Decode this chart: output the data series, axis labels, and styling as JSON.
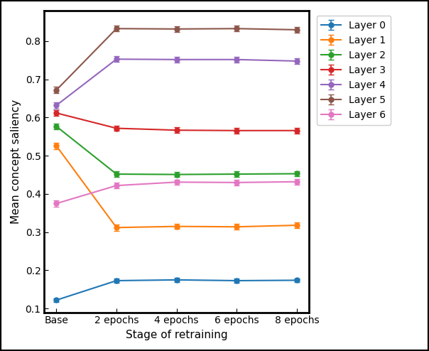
{
  "x_labels": [
    "Base",
    "2 epochs",
    "4 epochs",
    "6 epochs",
    "8 epochs"
  ],
  "x_values": [
    0,
    1,
    2,
    3,
    4
  ],
  "layers": [
    {
      "name": "Layer 0",
      "color": "#1f77b4",
      "values": [
        0.122,
        0.173,
        0.175,
        0.173,
        0.174
      ],
      "errors": [
        0.005,
        0.005,
        0.005,
        0.005,
        0.005
      ]
    },
    {
      "name": "Layer 1",
      "color": "#ff7f0e",
      "values": [
        0.526,
        0.312,
        0.315,
        0.314,
        0.318
      ],
      "errors": [
        0.008,
        0.008,
        0.007,
        0.007,
        0.007
      ]
    },
    {
      "name": "Layer 2",
      "color": "#2ca02c",
      "values": [
        0.577,
        0.452,
        0.451,
        0.452,
        0.453
      ],
      "errors": [
        0.008,
        0.008,
        0.007,
        0.007,
        0.007
      ]
    },
    {
      "name": "Layer 3",
      "color": "#d62728",
      "values": [
        0.612,
        0.572,
        0.567,
        0.566,
        0.566
      ],
      "errors": [
        0.008,
        0.007,
        0.007,
        0.007,
        0.007
      ]
    },
    {
      "name": "Layer 4",
      "color": "#9467bd",
      "values": [
        0.632,
        0.753,
        0.752,
        0.752,
        0.748
      ],
      "errors": [
        0.008,
        0.007,
        0.007,
        0.007,
        0.007
      ]
    },
    {
      "name": "Layer 5",
      "color": "#8c564b",
      "values": [
        0.672,
        0.833,
        0.832,
        0.833,
        0.83
      ],
      "errors": [
        0.008,
        0.007,
        0.007,
        0.007,
        0.007
      ]
    },
    {
      "name": "Layer 6",
      "color": "#e377c2",
      "values": [
        0.375,
        0.422,
        0.431,
        0.43,
        0.432
      ],
      "errors": [
        0.008,
        0.007,
        0.007,
        0.007,
        0.007
      ]
    }
  ],
  "xlabel": "Stage of retraining",
  "ylabel": "Mean concept saliency",
  "ylim": [
    0.09,
    0.88
  ],
  "yticks": [
    0.1,
    0.2,
    0.3,
    0.4,
    0.5,
    0.6,
    0.7,
    0.8
  ],
  "figsize": [
    6.04,
    4.94
  ],
  "dpi": 100,
  "background_color": "#ffffff",
  "legend_fontsize": 10,
  "axis_fontsize": 11
}
